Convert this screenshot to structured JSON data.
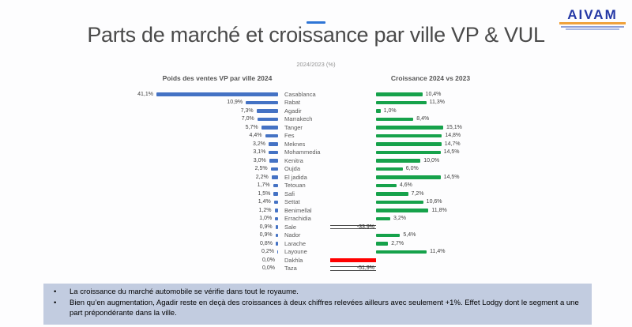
{
  "logo": {
    "text": "AIVAM"
  },
  "header": {
    "title": "Parts de marché et croissance par ville VP & VUL",
    "subtitle": "2024/2023 (%)"
  },
  "chart_data": {
    "type": "bar",
    "variant": "tornado-dual-horizontal",
    "left_title": "Poids des ventes VP par ville 2024",
    "right_title": "Croissance 2024 vs 2023",
    "unit": "%",
    "legend_position": "none",
    "grid": false,
    "colors": {
      "share_bar": "#4472c4",
      "growth_bar": "#16a24b",
      "negative_bar_red": "#ff0000"
    },
    "categories": [
      "Casablanca",
      "Rabat",
      "Agadir",
      "Marrakech",
      "Tanger",
      "Fes",
      "Meknes",
      "Mohammedia",
      "Kenitra",
      "Oujda",
      "El jadida",
      "Tetouan",
      "Safi",
      "Settat",
      "Benimellal",
      "Errachidia",
      "Sale",
      "Nador",
      "Larache",
      "Layoune",
      "Dakhla",
      "Taza"
    ],
    "rows": [
      {
        "city": "Casablanca",
        "share": 41.1,
        "share_label": "41,1%",
        "growth": 10.4,
        "growth_label": "10,4%",
        "growth_style": "green"
      },
      {
        "city": "Rabat",
        "share": 10.9,
        "share_label": "10,9%",
        "growth": 11.3,
        "growth_label": "11,3%",
        "growth_style": "green"
      },
      {
        "city": "Agadir",
        "share": 7.3,
        "share_label": "7,3%",
        "growth": 1.0,
        "growth_label": "1,0%",
        "growth_style": "green"
      },
      {
        "city": "Marrakech",
        "share": 7.0,
        "share_label": "7,0%",
        "growth": 8.4,
        "growth_label": "8,4%",
        "growth_style": "green"
      },
      {
        "city": "Tanger",
        "share": 5.7,
        "share_label": "5,7%",
        "growth": 15.1,
        "growth_label": "15,1%",
        "growth_style": "green"
      },
      {
        "city": "Fes",
        "share": 4.4,
        "share_label": "4,4%",
        "growth": 14.8,
        "growth_label": "14,8%",
        "growth_style": "green"
      },
      {
        "city": "Meknes",
        "share": 3.2,
        "share_label": "3,2%",
        "growth": 14.7,
        "growth_label": "14,7%",
        "growth_style": "green"
      },
      {
        "city": "Mohammedia",
        "share": 3.1,
        "share_label": "3,1%",
        "growth": 14.5,
        "growth_label": "14,5%",
        "growth_style": "green"
      },
      {
        "city": "Kenitra",
        "share": 3.0,
        "share_label": "3,0%",
        "growth": 10.0,
        "growth_label": "10,0%",
        "growth_style": "green"
      },
      {
        "city": "Oujda",
        "share": 2.5,
        "share_label": "2,5%",
        "growth": 6.0,
        "growth_label": "6,0%",
        "growth_style": "green"
      },
      {
        "city": "El jadida",
        "share": 2.2,
        "share_label": "2,2%",
        "growth": 14.5,
        "growth_label": "14,5%",
        "growth_style": "green"
      },
      {
        "city": "Tetouan",
        "share": 1.7,
        "share_label": "1,7%",
        "growth": 4.6,
        "growth_label": "4,6%",
        "growth_style": "green"
      },
      {
        "city": "Safi",
        "share": 1.5,
        "share_label": "1,5%",
        "growth": 7.2,
        "growth_label": "7,2%",
        "growth_style": "green"
      },
      {
        "city": "Settat",
        "share": 1.4,
        "share_label": "1,4%",
        "growth": 10.6,
        "growth_label": "10,6%",
        "growth_style": "green"
      },
      {
        "city": "Benimellal",
        "share": 1.2,
        "share_label": "1,2%",
        "growth": 11.8,
        "growth_label": "11,8%",
        "growth_style": "green"
      },
      {
        "city": "Errachidia",
        "share": 1.0,
        "share_label": "1,0%",
        "growth": 3.2,
        "growth_label": "3,2%",
        "growth_style": "green"
      },
      {
        "city": "Sale",
        "share": 0.9,
        "share_label": "0,9%",
        "growth": -33.9,
        "growth_label": "-33,9%",
        "growth_style": "outline"
      },
      {
        "city": "Nador",
        "share": 0.9,
        "share_label": "0,9%",
        "growth": 5.4,
        "growth_label": "5,4%",
        "growth_style": "green"
      },
      {
        "city": "Larache",
        "share": 0.8,
        "share_label": "0,8%",
        "growth": 2.7,
        "growth_label": "2,7%",
        "growth_style": "green"
      },
      {
        "city": "Layoune",
        "share": 0.2,
        "share_label": "0,2%",
        "growth": 11.4,
        "growth_label": "11,4%",
        "growth_style": "green"
      },
      {
        "city": "Dakhla",
        "share": 0.0,
        "share_label": "0,0%",
        "growth": null,
        "growth_label": "",
        "growth_style": "red"
      },
      {
        "city": "Taza",
        "share": 0.0,
        "share_label": "0,0%",
        "growth": -51.9,
        "growth_label": "-51,9%",
        "growth_style": "outline"
      }
    ]
  },
  "notes": {
    "items": [
      "La croissance du marché automobile se vérifie dans tout le royaume.",
      "Bien qu’en augmentation, Agadir reste en deçà des croissances à deux chiffres relevées ailleurs avec seulement +1%. Effet Lodgy dont le segment a une part prépondérante dans la ville."
    ]
  }
}
